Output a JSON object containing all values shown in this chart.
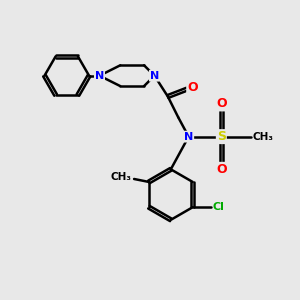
{
  "background_color": "#e8e8e8",
  "bond_color": "#000000",
  "bond_width": 1.8,
  "atom_colors": {
    "N": "#0000ff",
    "O": "#ff0000",
    "S": "#cccc00",
    "Cl": "#00aa00",
    "C": "#000000"
  }
}
